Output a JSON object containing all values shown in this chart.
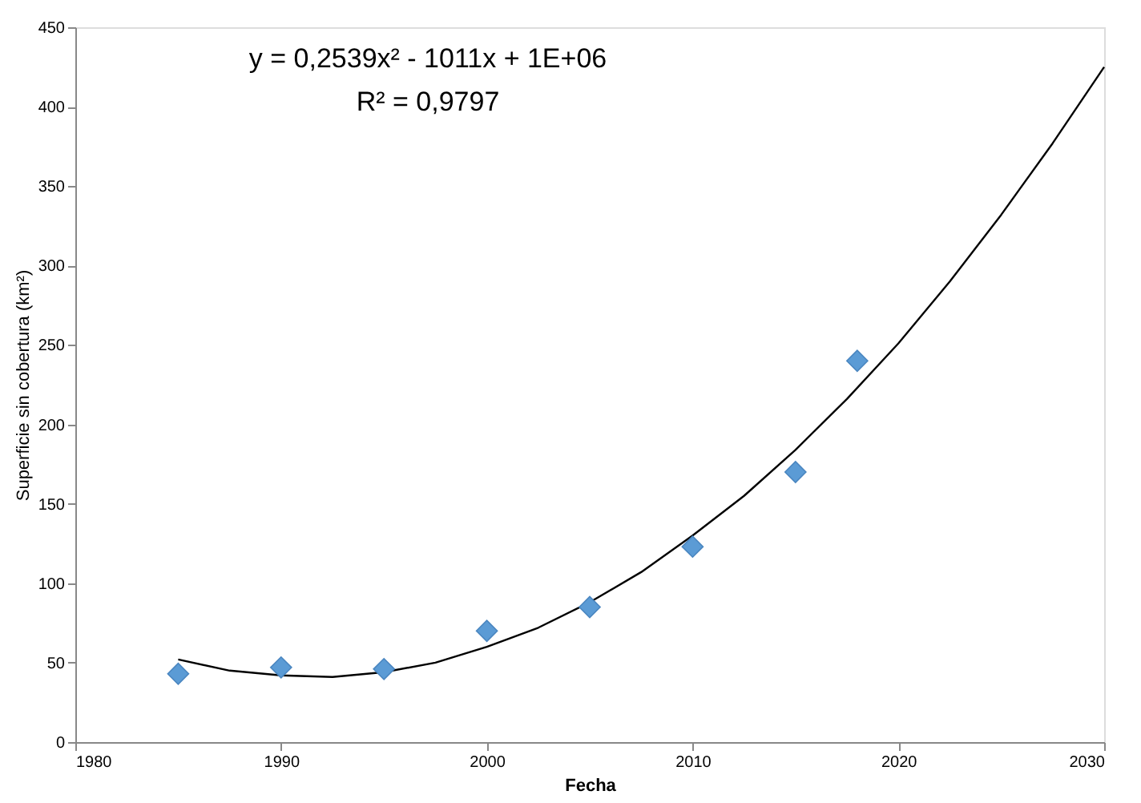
{
  "chart_data": {
    "type": "scatter",
    "xlabel": "Fecha",
    "ylabel": "Superficie sin cobertura (km²)",
    "xlim": [
      1980,
      2030
    ],
    "xticks": [
      1980,
      1990,
      2000,
      2010,
      2020,
      2030
    ],
    "ylim": [
      0,
      450
    ],
    "yticks": [
      0,
      50,
      100,
      150,
      200,
      250,
      300,
      350,
      400,
      450
    ],
    "grid": false,
    "annotations": [
      "y = 0,2539x² - 1011x + 1E+06",
      "R² = 0,9797"
    ],
    "series": [
      {
        "type": "line",
        "color": "#000000",
        "marker": "none",
        "line_style": "solid",
        "x": [
          1985,
          1987.5,
          1990,
          1992.5,
          1995,
          1997.5,
          2000,
          2002.5,
          2005,
          2007.5,
          2010,
          2012.5,
          2015,
          2017.5,
          2020,
          2022.5,
          2025,
          2027.5,
          2030
        ],
        "values": [
          52,
          45,
          42,
          41,
          44,
          50,
          60,
          72,
          88,
          107,
          130,
          155,
          184,
          216,
          251,
          290,
          332,
          377,
          425
        ]
      },
      {
        "color": "#5b9bd5",
        "marker": "diamond",
        "x": [
          1985,
          1990,
          1995,
          2000,
          2005,
          2010,
          2015,
          2018
        ],
        "values": [
          43,
          47,
          46,
          70,
          85,
          123,
          170,
          240
        ]
      }
    ]
  }
}
